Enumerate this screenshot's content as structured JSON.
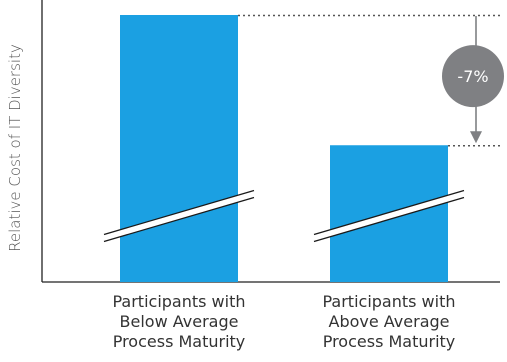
{
  "chart_data": {
    "type": "bar",
    "title": "",
    "xlabel": "",
    "ylabel": "Relative Cost of IT Diversity",
    "categories": [
      [
        "Participants with",
        "Below Average",
        "Process Maturity"
      ],
      [
        "Participants with",
        "Above Average",
        "Process Maturity"
      ]
    ],
    "values": [
      100,
      93
    ],
    "ylim": [
      0,
      100
    ],
    "axis_break": true,
    "grid": false,
    "legend": "none",
    "annotation": {
      "text": "-7%",
      "from_bar": 0,
      "to_bar": 1
    },
    "colors": {
      "bar": "#1ba0e2",
      "annotation_circle": "#7f8083",
      "axis": "#222222"
    }
  }
}
